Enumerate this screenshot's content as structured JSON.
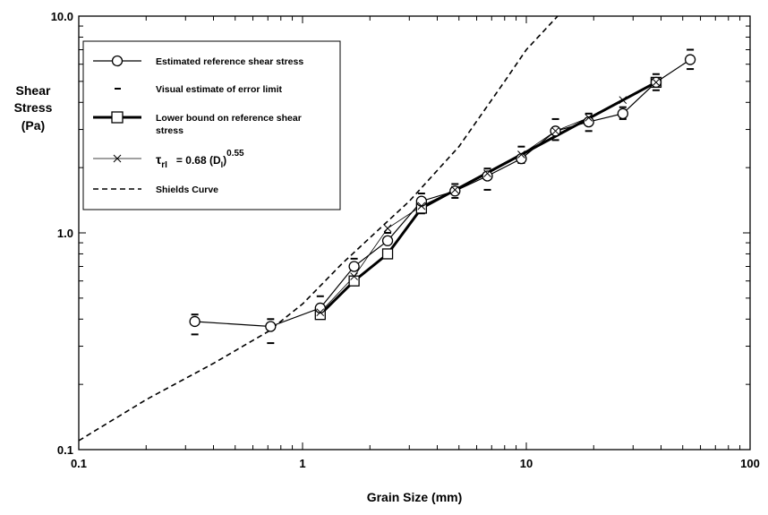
{
  "chart_data": {
    "type": "line",
    "xscale": "log",
    "yscale": "log",
    "xlim": [
      0.1,
      100
    ],
    "ylim": [
      0.1,
      10
    ],
    "xticks": [
      "0.1",
      "1",
      "10",
      "100"
    ],
    "yticks": [
      "0.1",
      "1.0",
      "10.0"
    ],
    "xlabel": "Grain Size (mm)",
    "ylabel": [
      "Shear",
      "Stress",
      "(Pa)"
    ],
    "legend_position": "top-left",
    "legend": {
      "est": "Estimated reference shear stress",
      "err": "Visual estimate of error limit",
      "lower": [
        "Lower bound on reference shear",
        "stress"
      ],
      "fit_sym": "τ",
      "fit_sub": "rI",
      "fit_mid": "=  0.68  (D",
      "fit_sub2": "I",
      "fit_end": ")",
      "fit_exp": "0.55",
      "shields": "Shields Curve"
    },
    "series": [
      {
        "key": "estimated",
        "marker": "circle",
        "x": [
          0.33,
          0.72,
          1.2,
          1.7,
          2.4,
          3.4,
          4.8,
          6.7,
          9.5,
          13.5,
          19,
          27,
          38,
          54
        ],
        "y": [
          0.39,
          0.37,
          0.45,
          0.7,
          0.92,
          1.4,
          1.56,
          1.83,
          2.2,
          2.95,
          3.25,
          3.55,
          4.95,
          6.3
        ]
      },
      {
        "key": "error_upper",
        "marker": "dash",
        "x": [
          0.33,
          0.72,
          1.2,
          1.7,
          2.4,
          3.4,
          4.8,
          6.7,
          9.5,
          13.5,
          19,
          27,
          38,
          54
        ],
        "y": [
          0.42,
          0.4,
          0.51,
          0.76,
          1.0,
          1.52,
          1.68,
          1.98,
          2.5,
          3.35,
          3.55,
          3.8,
          5.4,
          7.0
        ]
      },
      {
        "key": "error_lower",
        "marker": "dash",
        "x": [
          0.33,
          0.72,
          1.2,
          1.7,
          2.4,
          3.4,
          4.8,
          6.7,
          9.5,
          13.5,
          19,
          27,
          38,
          54
        ],
        "y": [
          0.34,
          0.31,
          0.42,
          0.58,
          0.83,
          1.23,
          1.45,
          1.58,
          2.1,
          2.68,
          2.95,
          3.35,
          4.55,
          5.7
        ]
      },
      {
        "key": "lower_bound",
        "marker": "square",
        "x": [
          1.2,
          1.7,
          2.4,
          3.4,
          38
        ],
        "y": [
          0.42,
          0.6,
          0.8,
          1.3,
          4.95
        ]
      },
      {
        "key": "fit",
        "marker": "x",
        "x": [
          1.2,
          1.7,
          2.4,
          3.4,
          4.8,
          6.7,
          9.5,
          13.5,
          19,
          27,
          38
        ],
        "y": [
          0.43,
          0.63,
          1.05,
          1.33,
          1.58,
          1.88,
          2.3,
          2.95,
          3.4,
          4.1,
          4.95
        ]
      },
      {
        "key": "shields",
        "marker": "none",
        "x": [
          0.1,
          0.2,
          0.4,
          0.7,
          1.0,
          1.5,
          2.0,
          3.0,
          5.0,
          8.0,
          10.0,
          13.8
        ],
        "y": [
          0.11,
          0.17,
          0.25,
          0.35,
          0.47,
          0.72,
          0.95,
          1.4,
          2.5,
          5.0,
          7.0,
          10.0
        ]
      }
    ]
  }
}
